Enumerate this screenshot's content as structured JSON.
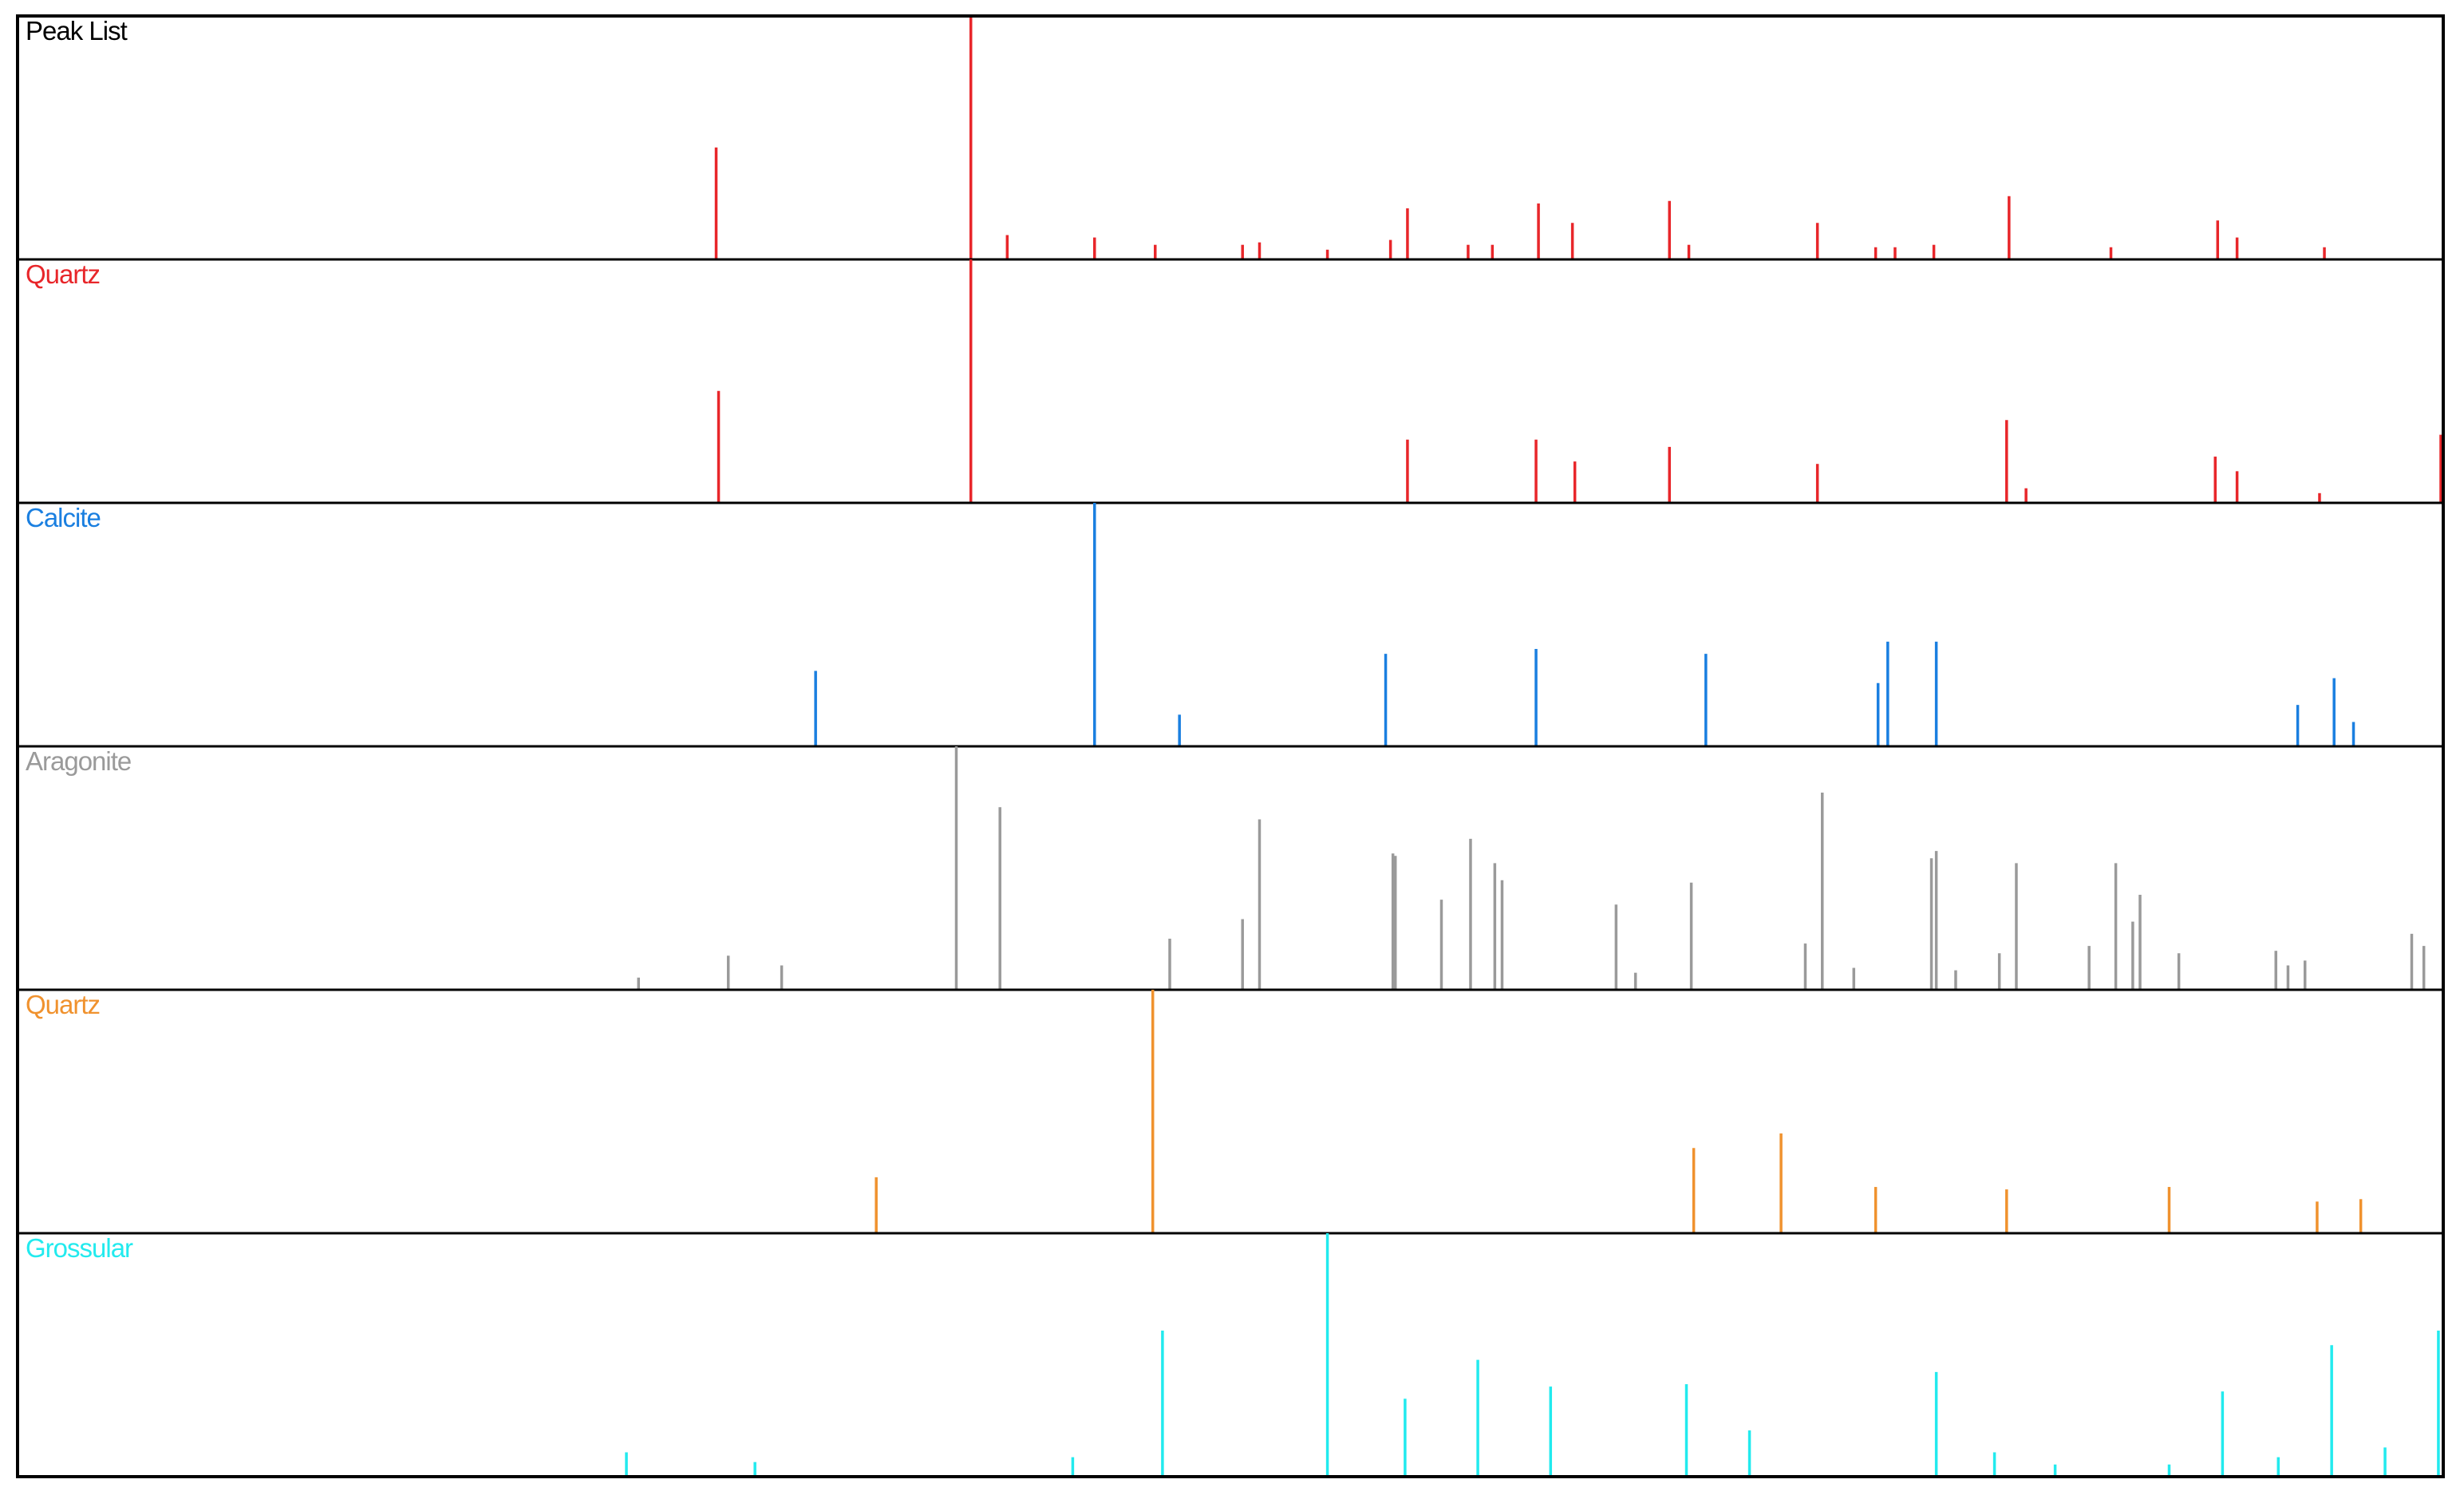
{
  "chart_data": [
    {
      "type": "stick",
      "title": "Peak List",
      "title_color": "#000000",
      "color": "#e8262a",
      "xlim": [
        0,
        100
      ],
      "ylim": [
        0,
        100
      ],
      "x": [
        28.8,
        39.3,
        40.8,
        44.4,
        46.9,
        50.5,
        51.2,
        54.0,
        56.6,
        57.3,
        59.8,
        60.8,
        62.7,
        64.1,
        68.1,
        68.9,
        74.2,
        76.6,
        77.4,
        79.0,
        82.1,
        86.3,
        90.7,
        91.5,
        95.1
      ],
      "values": [
        46,
        100,
        10,
        9,
        6,
        6,
        7,
        4,
        8,
        21,
        6,
        6,
        23,
        15,
        24,
        6,
        15,
        5,
        5,
        6,
        26,
        5,
        16,
        9,
        5
      ]
    },
    {
      "type": "stick",
      "title": "Quartz",
      "title_color": "#e8262a",
      "color": "#e8262a",
      "xlim": [
        0,
        100
      ],
      "ylim": [
        0,
        100
      ],
      "x": [
        28.9,
        39.3,
        57.3,
        62.6,
        64.2,
        68.1,
        74.2,
        82.0,
        82.8,
        90.6,
        91.5,
        94.9,
        99.9
      ],
      "values": [
        46,
        100,
        26,
        26,
        17,
        23,
        16,
        34,
        6,
        19,
        13,
        4,
        28
      ]
    },
    {
      "type": "stick",
      "title": "Calcite",
      "title_color": "#1a7fe0",
      "color": "#1a7fe0",
      "xlim": [
        0,
        100
      ],
      "ylim": [
        0,
        100
      ],
      "x": [
        32.9,
        44.4,
        47.9,
        56.4,
        62.6,
        69.6,
        76.7,
        77.1,
        79.1,
        94.0,
        95.5,
        96.3
      ],
      "values": [
        31,
        100,
        13,
        38,
        40,
        38,
        26,
        43,
        43,
        17,
        28,
        10
      ]
    },
    {
      "type": "stick",
      "title": "Aragonite",
      "title_color": "#9a9a9a",
      "color": "#9a9a9a",
      "xlim": [
        0,
        100
      ],
      "ylim": [
        0,
        100
      ],
      "x": [
        25.6,
        29.3,
        31.5,
        38.7,
        40.5,
        47.5,
        50.5,
        51.2,
        56.7,
        56.8,
        58.7,
        59.9,
        60.9,
        61.2,
        65.9,
        66.7,
        69.0,
        73.7,
        74.4,
        75.7,
        78.9,
        79.1,
        79.9,
        81.7,
        82.4,
        85.4,
        86.5,
        87.2,
        87.5,
        89.1,
        93.1,
        93.6,
        94.3,
        98.7,
        99.2
      ],
      "values": [
        5,
        14,
        10,
        100,
        75,
        21,
        29,
        70,
        56,
        55,
        37,
        62,
        52,
        45,
        35,
        7,
        44,
        19,
        81,
        9,
        54,
        57,
        8,
        15,
        52,
        18,
        52,
        28,
        39,
        15,
        16,
        10,
        12,
        23,
        18
      ]
    },
    {
      "type": "stick",
      "title": "Quartz",
      "title_color": "#f0922e",
      "color": "#f0922e",
      "xlim": [
        0,
        100
      ],
      "ylim": [
        0,
        100
      ],
      "x": [
        35.4,
        46.8,
        69.1,
        72.7,
        76.6,
        82.0,
        88.7,
        94.8,
        96.6
      ],
      "values": [
        23,
        100,
        35,
        41,
        19,
        18,
        19,
        13,
        14
      ]
    },
    {
      "type": "stick",
      "title": "Grossular",
      "title_color": "#22eaee",
      "color": "#22eaee",
      "xlim": [
        0,
        100
      ],
      "ylim": [
        0,
        100
      ],
      "x": [
        25.1,
        30.4,
        43.5,
        47.2,
        54.0,
        57.2,
        60.2,
        63.2,
        68.8,
        71.4,
        79.1,
        81.5,
        84.0,
        88.7,
        90.9,
        93.2,
        95.4,
        97.6,
        99.8
      ],
      "values": [
        10,
        6,
        8,
        60,
        100,
        32,
        48,
        37,
        38,
        19,
        43,
        10,
        5,
        5,
        35,
        8,
        54,
        12,
        60
      ]
    }
  ]
}
